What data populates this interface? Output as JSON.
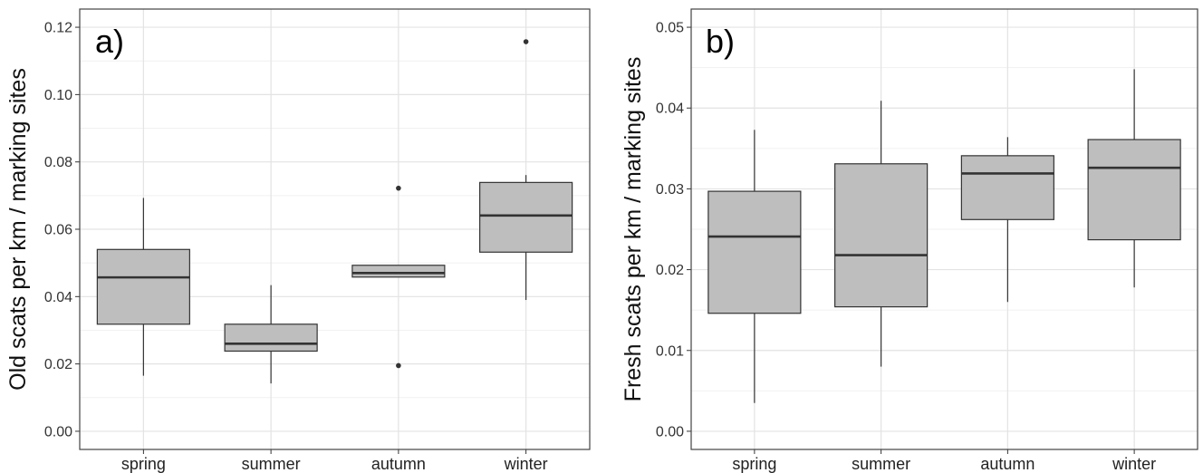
{
  "chart_data": [
    {
      "type": "box",
      "panel_label": "a)",
      "ylabel": "Old scats per km / marking sites",
      "xlabel": "",
      "ylim": [
        0,
        0.12
      ],
      "yticks": [
        0.0,
        0.02,
        0.04,
        0.06,
        0.08,
        0.1,
        0.12
      ],
      "ytick_labels": [
        "0.00",
        "0.02",
        "0.04",
        "0.06",
        "0.08",
        "0.10",
        "0.12"
      ],
      "categories": [
        "spring",
        "summer",
        "autumn",
        "winter"
      ],
      "boxes": [
        {
          "category": "spring",
          "whisker_low": 0.0165,
          "q1": 0.0318,
          "median": 0.0457,
          "q3": 0.054,
          "whisker_high": 0.0693,
          "outliers": []
        },
        {
          "category": "summer",
          "whisker_low": 0.0142,
          "q1": 0.0238,
          "median": 0.026,
          "q3": 0.0318,
          "whisker_high": 0.0434,
          "outliers": []
        },
        {
          "category": "autumn",
          "whisker_low": 0.0458,
          "q1": 0.0458,
          "median": 0.047,
          "q3": 0.0493,
          "whisker_high": 0.0493,
          "outliers": [
            0.0722,
            0.0195
          ]
        },
        {
          "category": "winter",
          "whisker_low": 0.039,
          "q1": 0.0532,
          "median": 0.0641,
          "q3": 0.0739,
          "whisker_high": 0.0761,
          "outliers": [
            0.1157
          ]
        }
      ],
      "grid": true,
      "fill_color": "#bebebe",
      "line_color": "#333333"
    },
    {
      "type": "box",
      "panel_label": "b)",
      "ylabel": "Fresh scats per km / marking sites",
      "xlabel": "",
      "ylim": [
        0,
        0.05
      ],
      "yticks": [
        0.0,
        0.01,
        0.02,
        0.03,
        0.04,
        0.05
      ],
      "ytick_labels": [
        "0.00",
        "0.01",
        "0.02",
        "0.03",
        "0.04",
        "0.05"
      ],
      "categories": [
        "spring",
        "summer",
        "autumn",
        "winter"
      ],
      "boxes": [
        {
          "category": "spring",
          "whisker_low": 0.0035,
          "q1": 0.0146,
          "median": 0.0241,
          "q3": 0.0297,
          "whisker_high": 0.0373,
          "outliers": []
        },
        {
          "category": "summer",
          "whisker_low": 0.008,
          "q1": 0.0154,
          "median": 0.0218,
          "q3": 0.0331,
          "whisker_high": 0.0409,
          "outliers": []
        },
        {
          "category": "autumn",
          "whisker_low": 0.016,
          "q1": 0.0262,
          "median": 0.0319,
          "q3": 0.0341,
          "whisker_high": 0.0364,
          "outliers": []
        },
        {
          "category": "winter",
          "whisker_low": 0.0178,
          "q1": 0.0237,
          "median": 0.0326,
          "q3": 0.0361,
          "whisker_high": 0.0448,
          "outliers": []
        }
      ],
      "grid": true,
      "fill_color": "#bebebe",
      "line_color": "#333333"
    }
  ]
}
